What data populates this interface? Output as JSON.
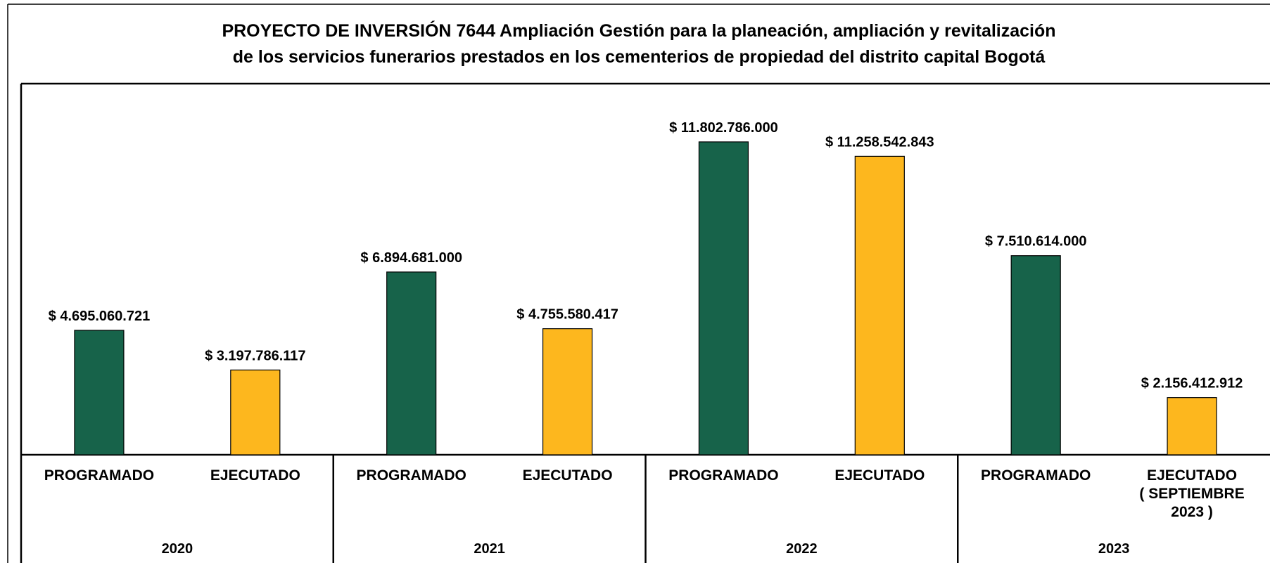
{
  "chart_data": {
    "type": "bar",
    "title": "PROYECTO DE INVERSIÓN 7644 Ampliación Gestión para la planeación, ampliación y revitalización\nde los servicios funerarios prestados en los cementerios de propiedad del distrito capital Bogotá",
    "categories": [
      "PROGRAMADO",
      "EJECUTADO",
      "PROGRAMADO",
      "EJECUTADO",
      "PROGRAMADO",
      "EJECUTADO",
      "PROGRAMADO",
      "EJECUTADO\n( SEPTIEMBRE\n2023 )"
    ],
    "groups": [
      "2020",
      "2021",
      "2022",
      "2023"
    ],
    "values": [
      4695060721,
      3197786117,
      6894681000,
      4755580417,
      11802786000,
      11258542843,
      7510614000,
      2156412912
    ],
    "value_labels": [
      "$ 4.695.060.721",
      "$ 3.197.786.117",
      "$ 6.894.681.000",
      "$ 4.755.580.417",
      "$ 11.802.786.000",
      "$ 11.258.542.843",
      "$ 7.510.614.000",
      "$ 2.156.412.912"
    ],
    "colors": [
      "#17634a",
      "#fdb71e",
      "#17634a",
      "#fdb71e",
      "#17634a",
      "#fdb71e",
      "#17634a",
      "#fdb71e"
    ],
    "ylim": [
      0,
      14000000000
    ]
  }
}
